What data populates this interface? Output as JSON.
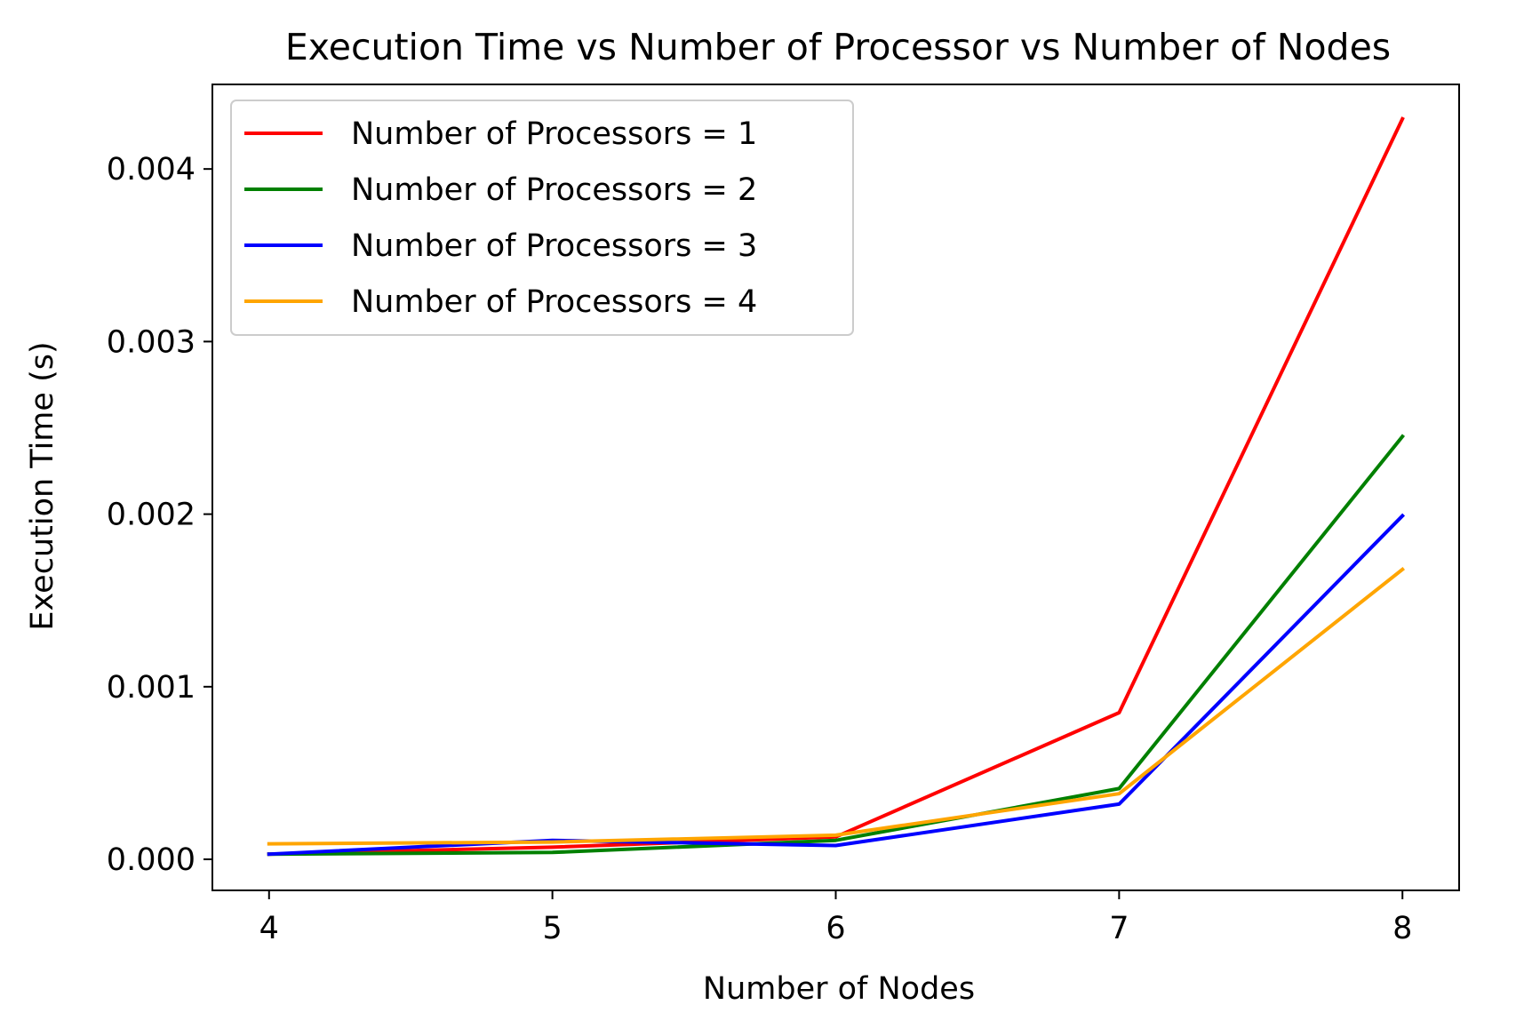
{
  "chart_data": {
    "type": "line",
    "title": "Execution Time vs Number of Processor vs Number of Nodes",
    "xlabel": "Number of Nodes",
    "ylabel": "Execution Time (s)",
    "x": [
      4,
      5,
      6,
      7,
      8
    ],
    "x_ticks": [
      "4",
      "5",
      "6",
      "7",
      "8"
    ],
    "y_ticks": [
      "0.000",
      "0.001",
      "0.002",
      "0.003",
      "0.004"
    ],
    "xlim": [
      3.8,
      8.2
    ],
    "ylim": [
      -0.00018,
      0.00449
    ],
    "grid": false,
    "legend_position": "top-left",
    "series": [
      {
        "name": "Number of Processors = 1",
        "color": "#ff0000",
        "values": [
          3e-05,
          7e-05,
          0.00013,
          0.00085,
          0.00429
        ]
      },
      {
        "name": "Number of Processors = 2",
        "color": "#008000",
        "values": [
          3e-05,
          4e-05,
          0.00011,
          0.00041,
          0.00245
        ]
      },
      {
        "name": "Number of Processors = 3",
        "color": "#0000ff",
        "values": [
          3e-05,
          0.00011,
          8e-05,
          0.00032,
          0.00199
        ]
      },
      {
        "name": "Number of Processors = 4",
        "color": "#ffa500",
        "values": [
          9e-05,
          0.0001,
          0.00014,
          0.00038,
          0.00168
        ]
      }
    ]
  }
}
